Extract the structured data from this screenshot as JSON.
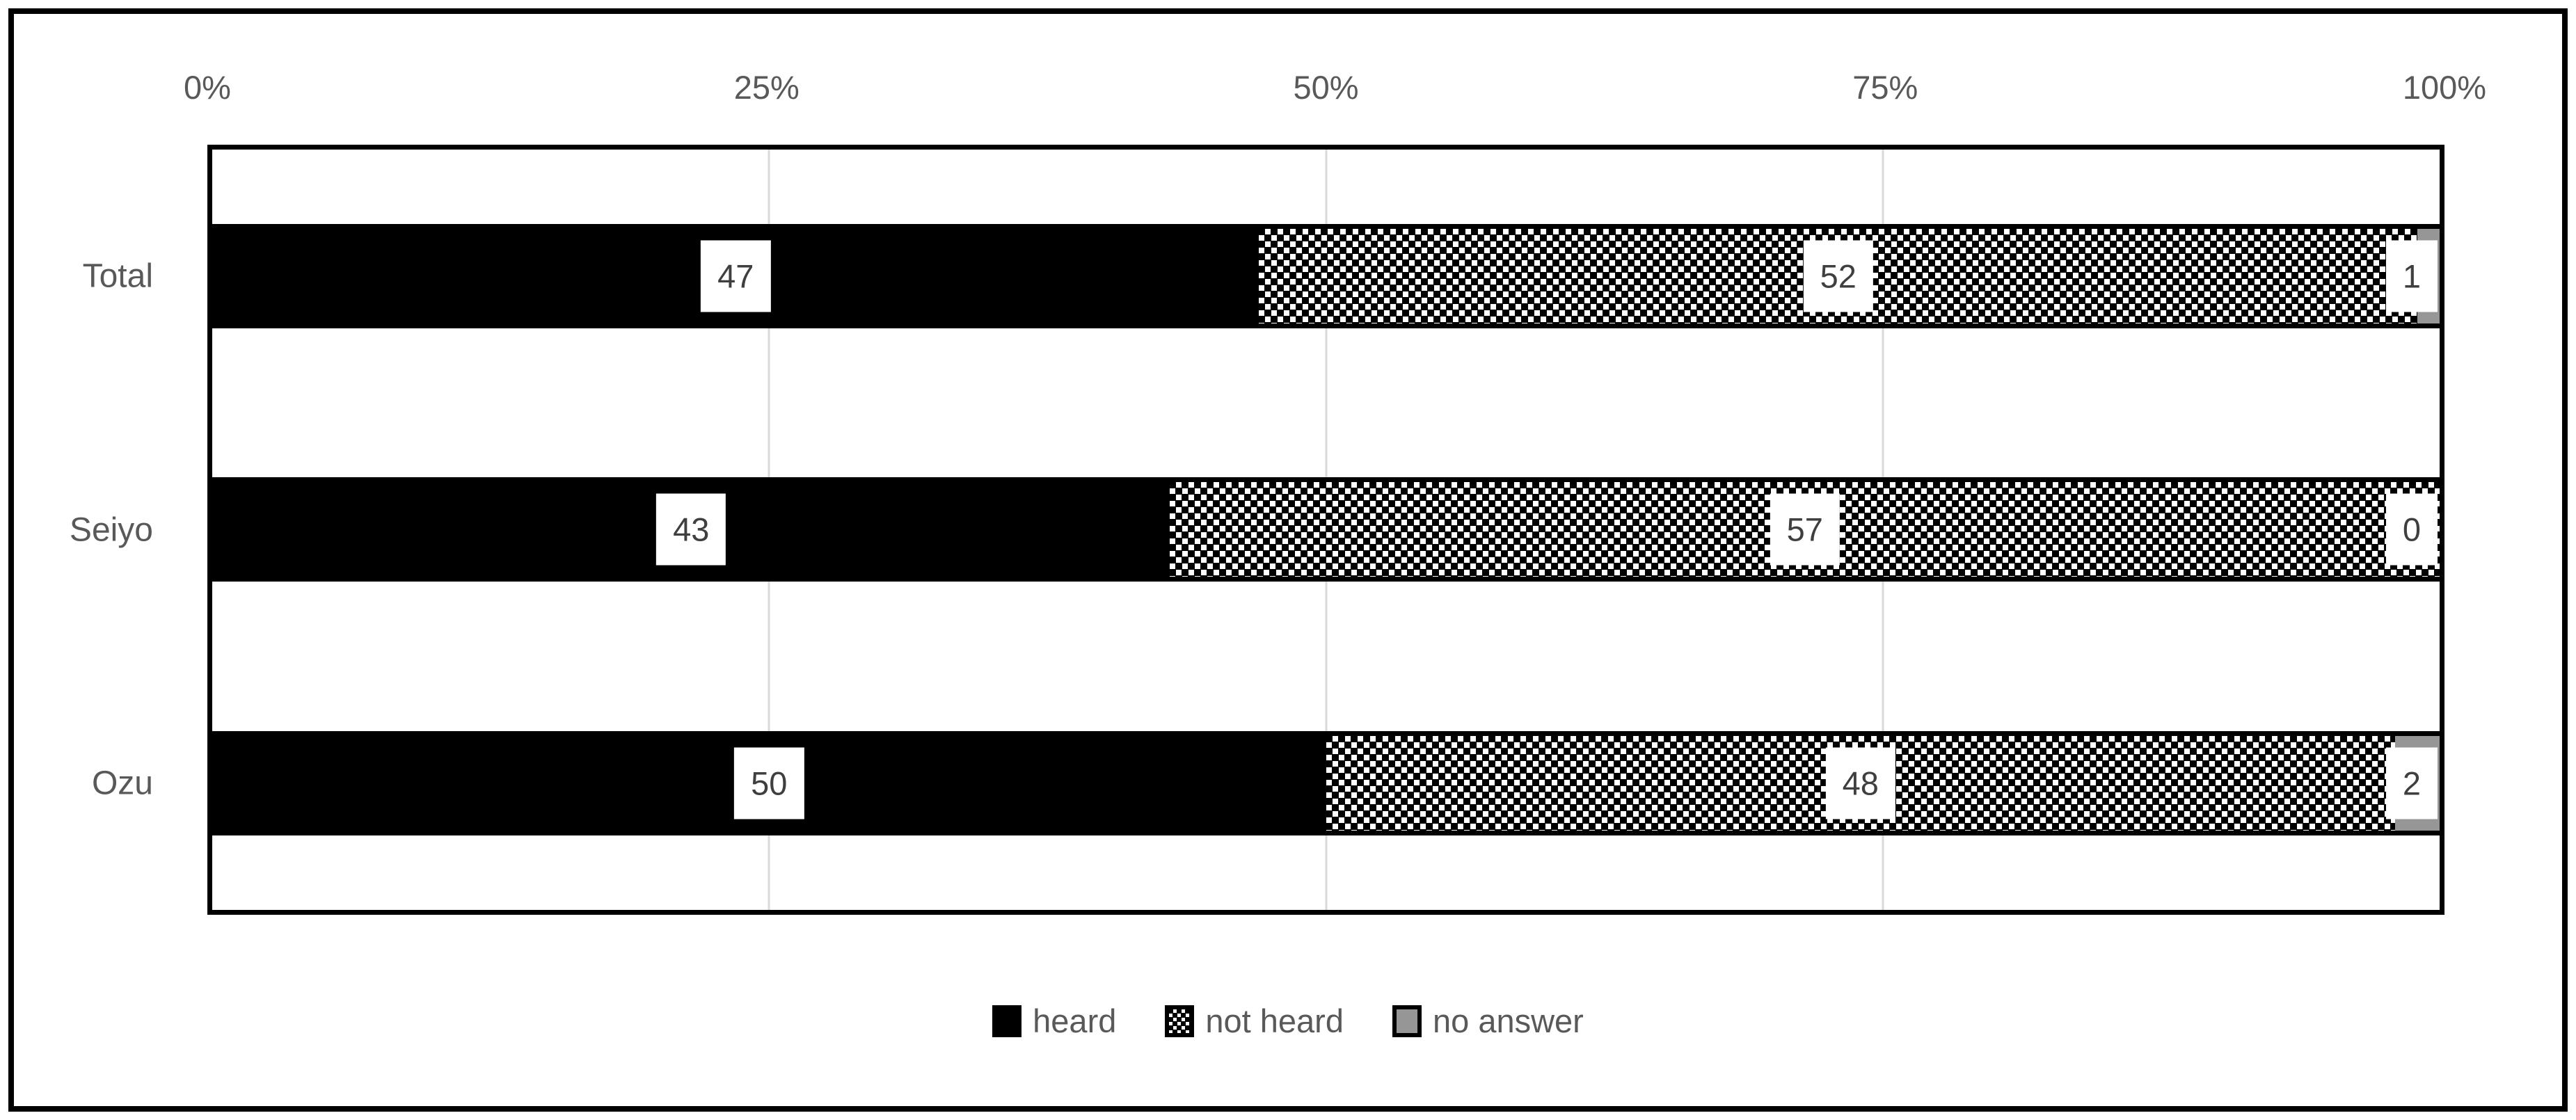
{
  "chart_data": {
    "type": "bar",
    "orientation": "horizontal",
    "stacked": true,
    "title": "",
    "categories": [
      "Total",
      "Seiyo",
      "Ozu"
    ],
    "series": [
      {
        "name": "heard",
        "fill": "solid-black",
        "values": [
          47,
          43,
          50
        ]
      },
      {
        "name": "not heard",
        "fill": "dotted-pattern",
        "values": [
          52,
          57,
          48
        ]
      },
      {
        "name": "no answer",
        "fill": "solid-gray",
        "values": [
          1,
          0,
          2
        ]
      }
    ],
    "data_labels": [
      [
        "47",
        "52",
        "1"
      ],
      [
        "43",
        "57",
        "0"
      ],
      [
        "50",
        "48",
        "2"
      ]
    ],
    "x_ticks": [
      "0%",
      "25%",
      "50%",
      "75%",
      "100%"
    ],
    "x_tick_values": [
      0,
      25,
      50,
      75,
      100
    ],
    "xlim": [
      0,
      100
    ],
    "grid": true,
    "gridline_values": [
      25,
      50,
      75
    ],
    "legend_position": "bottom",
    "axis_position": "top"
  },
  "colors": {
    "heard": "#000000",
    "not_heard_dot": "#000000",
    "not_heard_bg": "#ffffff",
    "no_answer": "#969696",
    "axis_text": "#595959",
    "data_label_text": "#3f3f3f",
    "gridline": "#d9d9d9",
    "border": "#000000",
    "background": "#ffffff"
  }
}
